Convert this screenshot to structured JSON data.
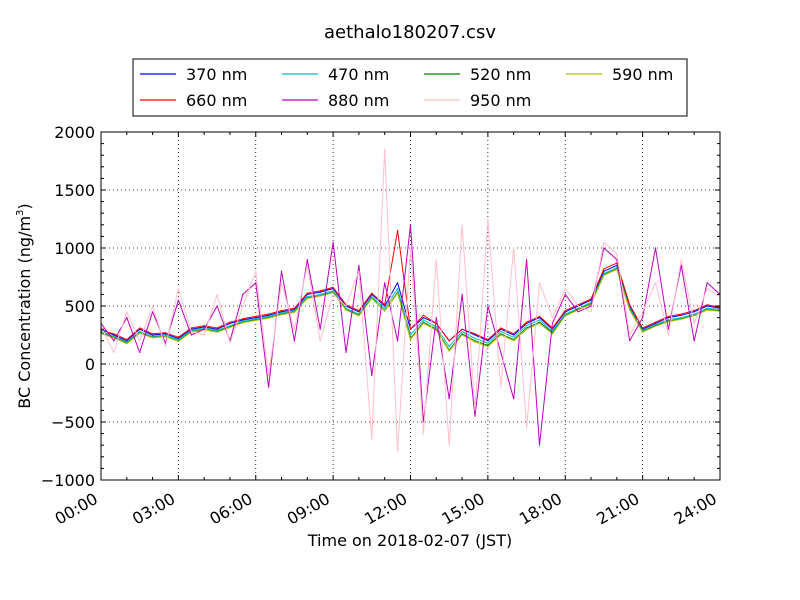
{
  "chart_data": {
    "type": "line",
    "title": "aethalo180207.csv",
    "xlabel": "Time on 2018-02-07 (JST)",
    "ylabel_main": "BC Concentration (ng/m",
    "ylabel_sup": "3",
    "ylabel_close": ")",
    "xlim_hours": [
      0,
      24
    ],
    "ylim": [
      -1000,
      2000
    ],
    "grid": true,
    "grid_style": "dotted",
    "legend_position": "top-center",
    "xticks": [
      {
        "value": 0,
        "label": "00:00"
      },
      {
        "value": 3,
        "label": "03:00"
      },
      {
        "value": 6,
        "label": "06:00"
      },
      {
        "value": 9,
        "label": "09:00"
      },
      {
        "value": 12,
        "label": "12:00"
      },
      {
        "value": 15,
        "label": "15:00"
      },
      {
        "value": 18,
        "label": "18:00"
      },
      {
        "value": 21,
        "label": "21:00"
      },
      {
        "value": 24,
        "label": "24:00"
      }
    ],
    "yticks": [
      {
        "value": 2000,
        "label": "2000"
      },
      {
        "value": 1500,
        "label": "1500"
      },
      {
        "value": 1000,
        "label": "1000"
      },
      {
        "value": 500,
        "label": "500"
      },
      {
        "value": 0,
        "label": "0"
      },
      {
        "value": -500,
        "label": "−500"
      },
      {
        "value": -1000,
        "label": "−1000"
      }
    ],
    "x_hours": [
      0.0,
      0.5,
      1.0,
      1.5,
      2.0,
      2.5,
      3.0,
      3.5,
      4.0,
      4.5,
      5.0,
      5.5,
      6.0,
      6.5,
      7.0,
      7.5,
      8.0,
      8.5,
      9.0,
      9.5,
      10.0,
      10.5,
      11.0,
      11.5,
      12.0,
      12.5,
      13.0,
      13.5,
      14.0,
      14.5,
      15.0,
      15.5,
      16.0,
      16.5,
      17.0,
      17.5,
      18.0,
      18.5,
      19.0,
      19.5,
      20.0,
      20.5,
      21.0,
      21.5,
      22.0,
      22.5,
      23.0,
      23.5,
      24.0
    ],
    "series": [
      {
        "name": "370 nm",
        "color": "#0000ff",
        "values": [
          300,
          250,
          200,
          300,
          250,
          260,
          220,
          300,
          320,
          300,
          350,
          380,
          400,
          420,
          450,
          470,
          600,
          620,
          650,
          500,
          450,
          600,
          500,
          700,
          300,
          400,
          350,
          200,
          300,
          250,
          200,
          300,
          250,
          350,
          400,
          300,
          450,
          500,
          550,
          800,
          850,
          500,
          300,
          350,
          400,
          420,
          450,
          500,
          480
        ]
      },
      {
        "name": "470 nm",
        "color": "#00bfbf",
        "values": [
          280,
          240,
          190,
          280,
          240,
          250,
          210,
          290,
          310,
          290,
          330,
          370,
          390,
          410,
          440,
          460,
          580,
          600,
          630,
          480,
          430,
          580,
          480,
          650,
          250,
          380,
          320,
          150,
          280,
          220,
          180,
          280,
          230,
          330,
          380,
          280,
          430,
          480,
          530,
          780,
          830,
          480,
          290,
          340,
          380,
          400,
          430,
          480,
          470
        ]
      },
      {
        "name": "520 nm",
        "color": "#008000",
        "values": [
          270,
          230,
          180,
          270,
          230,
          240,
          200,
          280,
          300,
          280,
          320,
          360,
          380,
          400,
          430,
          450,
          570,
          590,
          620,
          470,
          420,
          570,
          460,
          620,
          220,
          360,
          300,
          120,
          260,
          200,
          160,
          260,
          210,
          310,
          360,
          270,
          420,
          470,
          520,
          770,
          820,
          470,
          280,
          330,
          370,
          390,
          420,
          470,
          460
        ]
      },
      {
        "name": "590 nm",
        "color": "#bfbf00",
        "values": [
          260,
          225,
          175,
          265,
          225,
          235,
          195,
          275,
          295,
          275,
          315,
          355,
          375,
          395,
          425,
          445,
          565,
          585,
          615,
          465,
          415,
          565,
          455,
          610,
          210,
          350,
          290,
          110,
          250,
          190,
          150,
          250,
          200,
          300,
          350,
          260,
          415,
          465,
          515,
          765,
          815,
          465,
          275,
          325,
          365,
          385,
          415,
          465,
          455
        ]
      },
      {
        "name": "660 nm",
        "color": "#ff0000",
        "values": [
          290,
          260,
          210,
          310,
          260,
          270,
          230,
          310,
          330,
          310,
          360,
          390,
          410,
          430,
          460,
          480,
          610,
          630,
          660,
          510,
          460,
          610,
          510,
          1150,
          300,
          420,
          350,
          200,
          300,
          260,
          210,
          310,
          260,
          360,
          410,
          310,
          460,
          510,
          560,
          820,
          870,
          510,
          310,
          360,
          410,
          430,
          460,
          510,
          490
        ]
      },
      {
        "name": "880 nm",
        "color": "#bf00bf",
        "values": [
          350,
          200,
          400,
          100,
          450,
          180,
          550,
          250,
          300,
          500,
          200,
          600,
          700,
          -200,
          800,
          200,
          900,
          300,
          1050,
          100,
          850,
          -100,
          700,
          200,
          1200,
          -500,
          400,
          -300,
          600,
          -450,
          500,
          100,
          -300,
          900,
          -700,
          350,
          600,
          450,
          500,
          1000,
          900,
          200,
          400,
          1000,
          300,
          850,
          200,
          700,
          600
        ]
      },
      {
        "name": "950 nm",
        "color": "#ffc0cb",
        "values": [
          320,
          100,
          450,
          200,
          500,
          150,
          650,
          280,
          250,
          600,
          180,
          500,
          800,
          -100,
          700,
          300,
          850,
          200,
          600,
          500,
          800,
          -650,
          1850,
          -750,
          1000,
          -600,
          900,
          -700,
          1200,
          -400,
          1250,
          -200,
          1000,
          -550,
          700,
          400,
          650,
          500,
          450,
          1050,
          950,
          250,
          450,
          700,
          250,
          900,
          350,
          650,
          580
        ]
      }
    ]
  }
}
